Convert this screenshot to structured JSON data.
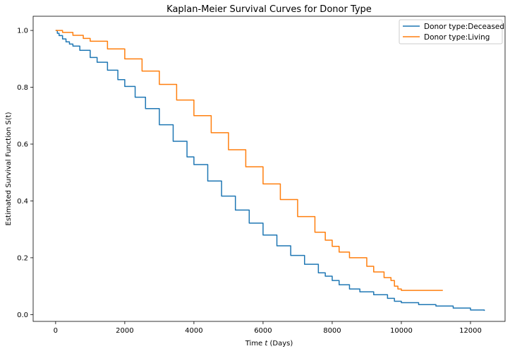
{
  "chart_data": {
    "type": "line",
    "title": "Kaplan-Meier Survival Curves for Donor Type",
    "xlabel": "Time t (Days)",
    "xlabel_parts": {
      "pre": "Time ",
      "var": "t",
      "post": " (Days)"
    },
    "ylabel": "Estimated Survival Function S(t)",
    "xlim": [
      -650,
      13000
    ],
    "ylim": [
      -0.024,
      1.05
    ],
    "x_ticks": [
      0,
      2000,
      4000,
      6000,
      8000,
      10000,
      12000
    ],
    "x_tick_labels": [
      "0",
      "2000",
      "4000",
      "6000",
      "8000",
      "10000",
      "12000"
    ],
    "y_ticks": [
      0.0,
      0.2,
      0.4,
      0.6,
      0.8,
      1.0
    ],
    "y_tick_labels": [
      "0.0",
      "0.2",
      "0.4",
      "0.6",
      "0.8",
      "1.0"
    ],
    "grid": false,
    "legend_position": "top-right",
    "step_interpolation": "post",
    "series": [
      {
        "name": "Donor type:Deceased",
        "color": "#1f77b4",
        "x": [
          0,
          50,
          100,
          200,
          300,
          400,
          500,
          700,
          1000,
          1200,
          1500,
          1800,
          2000,
          2300,
          2600,
          3000,
          3400,
          3800,
          4000,
          4400,
          4800,
          5200,
          5600,
          6000,
          6400,
          6800,
          7200,
          7600,
          7800,
          8000,
          8200,
          8500,
          8800,
          9200,
          9600,
          9800,
          10000,
          10500,
          11000,
          11500,
          12000,
          12400
        ],
        "y": [
          1.0,
          0.99,
          0.982,
          0.97,
          0.96,
          0.952,
          0.945,
          0.93,
          0.905,
          0.888,
          0.86,
          0.827,
          0.803,
          0.765,
          0.725,
          0.668,
          0.61,
          0.555,
          0.528,
          0.47,
          0.417,
          0.368,
          0.322,
          0.28,
          0.242,
          0.208,
          0.177,
          0.147,
          0.135,
          0.12,
          0.105,
          0.09,
          0.08,
          0.07,
          0.057,
          0.047,
          0.042,
          0.035,
          0.03,
          0.023,
          0.016,
          0.013
        ]
      },
      {
        "name": "Donor type:Living",
        "color": "#ff7f0e",
        "x": [
          0,
          200,
          500,
          800,
          1000,
          1500,
          2000,
          2500,
          3000,
          3500,
          4000,
          4500,
          5000,
          5500,
          6000,
          6500,
          7000,
          7500,
          7800,
          8000,
          8200,
          8500,
          9000,
          9200,
          9500,
          9700,
          9800,
          9900,
          10000,
          11200
        ],
        "y": [
          1.0,
          0.993,
          0.983,
          0.972,
          0.962,
          0.935,
          0.9,
          0.857,
          0.81,
          0.755,
          0.7,
          0.64,
          0.58,
          0.52,
          0.46,
          0.405,
          0.345,
          0.29,
          0.262,
          0.24,
          0.22,
          0.2,
          0.17,
          0.15,
          0.13,
          0.12,
          0.1,
          0.09,
          0.085,
          0.085
        ]
      }
    ]
  }
}
